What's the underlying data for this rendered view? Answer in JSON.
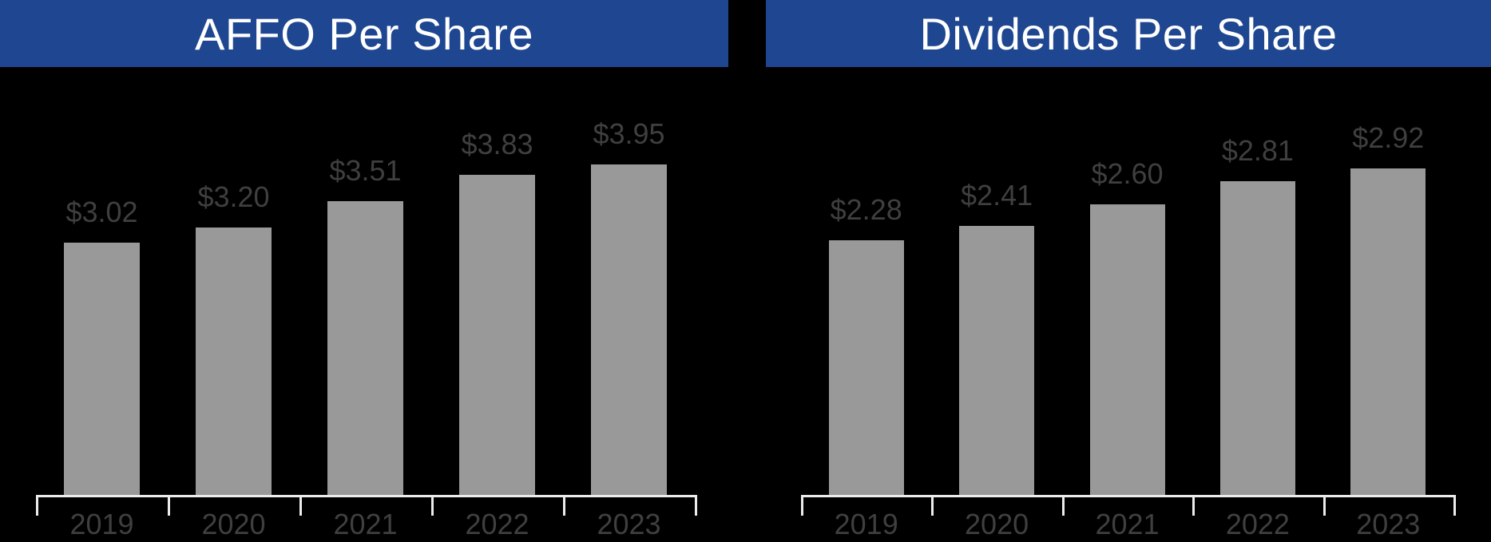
{
  "page": {
    "background_color": "#000000",
    "header_color": "#1f4690",
    "title_color": "#ffffff",
    "bar_color": "#999999",
    "text_color": "#3f3f3f",
    "axis_color": "#ececec"
  },
  "chart_data": [
    {
      "type": "bar",
      "title": "AFFO Per Share",
      "categories": [
        "2019",
        "2020",
        "2021",
        "2022",
        "2023"
      ],
      "values": [
        3.02,
        3.2,
        3.51,
        3.83,
        3.95
      ],
      "value_labels": [
        "$3.02",
        "$3.20",
        "$3.51",
        "$3.83",
        "$3.95"
      ],
      "xlabel": "",
      "ylabel": "",
      "ylim": [
        0,
        5.1
      ],
      "grid": false,
      "legend_position": "none",
      "bar_color": "#999999",
      "label_color": "#3f3f3f",
      "axis_color": "#ececec",
      "header_color": "#1f4690",
      "title_color": "#ffffff"
    },
    {
      "type": "bar",
      "title": "Dividends Per Share",
      "categories": [
        "2019",
        "2020",
        "2021",
        "2022",
        "2023"
      ],
      "values": [
        2.28,
        2.41,
        2.6,
        2.81,
        2.92
      ],
      "value_labels": [
        "$2.28",
        "$2.41",
        "$2.60",
        "$2.81",
        "$2.92"
      ],
      "xlabel": "",
      "ylabel": "",
      "ylim": [
        0,
        3.8
      ],
      "grid": false,
      "legend_position": "none",
      "bar_color": "#999999",
      "label_color": "#3f3f3f",
      "axis_color": "#ececec",
      "header_color": "#1f4690",
      "title_color": "#ffffff"
    }
  ]
}
